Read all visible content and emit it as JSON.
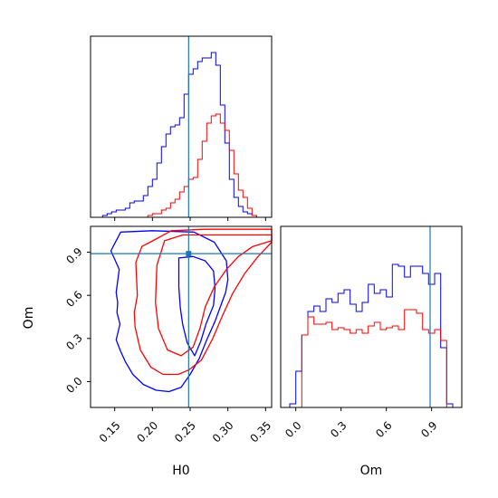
{
  "chart_data": {
    "type": "corner",
    "parameters": [
      "H0",
      "Om"
    ],
    "truth": {
      "H0": 0.248,
      "Om": 0.89
    },
    "colors": {
      "chain_1": "#0000ff",
      "chain_2": "#ff0000",
      "truth": "#1f77b4"
    },
    "grid": false,
    "panels": {
      "hist_H0": {
        "xlim": [
          0.118,
          0.358
        ],
        "bins": [
          0.122,
          0.128,
          0.134,
          0.14,
          0.146,
          0.152,
          0.158,
          0.164,
          0.17,
          0.176,
          0.182,
          0.188,
          0.194,
          0.2,
          0.206,
          0.212,
          0.218,
          0.224,
          0.23,
          0.236,
          0.242,
          0.248,
          0.254,
          0.26,
          0.266,
          0.272,
          0.278,
          0.284,
          0.29,
          0.296,
          0.302,
          0.308,
          0.314,
          0.32,
          0.326,
          0.332,
          0.338,
          0.344,
          0.35,
          0.356
        ],
        "series": [
          {
            "name": "",
            "color": "#0000ff",
            "values": [
              0.0,
              0.0,
              0.01,
              0.02,
              0.03,
              0.04,
              0.04,
              0.05,
              0.08,
              0.09,
              0.09,
              0.12,
              0.17,
              0.21,
              0.3,
              0.39,
              0.46,
              0.5,
              0.51,
              0.55,
              0.68,
              0.79,
              0.82,
              0.86,
              0.88,
              0.88,
              0.91,
              0.84,
              0.62,
              0.41,
              0.21,
              0.11,
              0.06,
              0.03,
              0.02,
              0.01,
              0.0,
              0.0,
              0.0
            ]
          },
          {
            "name": "",
            "color": "#ff0000",
            "values": [
              0.0,
              0.0,
              0.0,
              0.0,
              0.0,
              0.0,
              0.0,
              0.0,
              0.0,
              0.0,
              0.0,
              0.0,
              0.01,
              0.02,
              0.02,
              0.04,
              0.05,
              0.08,
              0.1,
              0.14,
              0.17,
              0.21,
              0.22,
              0.32,
              0.42,
              0.52,
              0.56,
              0.57,
              0.52,
              0.48,
              0.37,
              0.24,
              0.15,
              0.11,
              0.05,
              0.01,
              0.0,
              0.0,
              0.0
            ]
          }
        ]
      },
      "hist_Om": {
        "xlim": [
          -0.1,
          1.1
        ],
        "bins": [
          -0.08,
          -0.04,
          0.0,
          0.04,
          0.08,
          0.12,
          0.16,
          0.2,
          0.24,
          0.28,
          0.32,
          0.36,
          0.4,
          0.44,
          0.48,
          0.52,
          0.56,
          0.6,
          0.64,
          0.68,
          0.72,
          0.76,
          0.8,
          0.84,
          0.88,
          0.92,
          0.96,
          1.0,
          1.04,
          1.08
        ],
        "series": [
          {
            "name": "",
            "color": "#0000ff",
            "values": [
              0.0,
              0.02,
              0.2,
              0.4,
              0.53,
              0.56,
              0.53,
              0.6,
              0.58,
              0.63,
              0.65,
              0.57,
              0.53,
              0.58,
              0.68,
              0.63,
              0.65,
              0.61,
              0.79,
              0.78,
              0.72,
              0.78,
              0.78,
              0.74,
              0.68,
              0.74,
              0.33,
              0.02,
              0.0
            ]
          },
          {
            "name": "",
            "color": "#ff0000",
            "values": [
              0.0,
              0.0,
              0.0,
              0.4,
              0.5,
              0.46,
              0.46,
              0.47,
              0.43,
              0.44,
              0.43,
              0.41,
              0.43,
              0.41,
              0.45,
              0.47,
              0.43,
              0.44,
              0.45,
              0.43,
              0.54,
              0.54,
              0.52,
              0.43,
              0.41,
              0.43,
              0.37,
              0.0,
              0.0
            ]
          }
        ]
      },
      "scatter_H0_Om": {
        "xlim": [
          0.118,
          0.358
        ],
        "ylim": [
          -0.18,
          1.08
        ],
        "contours": [
          {
            "color": "#0000ff",
            "level": "outer",
            "points": [
              [
                0.158,
                1.04
              ],
              [
                0.145,
                0.91
              ],
              [
                0.156,
                0.78
              ],
              [
                0.152,
                0.62
              ],
              [
                0.154,
                0.55
              ],
              [
                0.153,
                0.48
              ],
              [
                0.157,
                0.4
              ],
              [
                0.152,
                0.29
              ],
              [
                0.158,
                0.21
              ],
              [
                0.164,
                0.14
              ],
              [
                0.174,
                0.05
              ],
              [
                0.188,
                -0.02
              ],
              [
                0.205,
                -0.06
              ],
              [
                0.222,
                -0.07
              ],
              [
                0.238,
                -0.04
              ],
              [
                0.25,
                0.05
              ],
              [
                0.262,
                0.16
              ],
              [
                0.272,
                0.29
              ],
              [
                0.283,
                0.42
              ],
              [
                0.29,
                0.52
              ],
              [
                0.297,
                0.62
              ],
              [
                0.3,
                0.71
              ],
              [
                0.298,
                0.84
              ],
              [
                0.282,
                0.97
              ],
              [
                0.255,
                1.04
              ],
              [
                0.2,
                1.05
              ]
            ]
          },
          {
            "color": "#0000ff",
            "level": "inner",
            "points": [
              [
                0.235,
                0.86
              ],
              [
                0.235,
                0.66
              ],
              [
                0.237,
                0.51
              ],
              [
                0.24,
                0.4
              ],
              [
                0.246,
                0.27
              ],
              [
                0.256,
                0.18
              ],
              [
                0.264,
                0.28
              ],
              [
                0.271,
                0.4
              ],
              [
                0.281,
                0.53
              ],
              [
                0.283,
                0.65
              ],
              [
                0.281,
                0.77
              ],
              [
                0.27,
                0.84
              ],
              [
                0.254,
                0.87
              ]
            ]
          },
          {
            "color": "#ff0000",
            "level": "outer",
            "points": [
              [
                0.197,
                0.97
              ],
              [
                0.186,
                0.94
              ],
              [
                0.178,
                0.83
              ],
              [
                0.18,
                0.6
              ],
              [
                0.176,
                0.48
              ],
              [
                0.177,
                0.38
              ],
              [
                0.184,
                0.22
              ],
              [
                0.198,
                0.1
              ],
              [
                0.214,
                0.05
              ],
              [
                0.234,
                0.05
              ],
              [
                0.248,
                0.08
              ],
              [
                0.265,
                0.15
              ],
              [
                0.28,
                0.3
              ],
              [
                0.293,
                0.46
              ],
              [
                0.306,
                0.61
              ],
              [
                0.322,
                0.75
              ],
              [
                0.34,
                0.87
              ],
              [
                0.358,
                0.97
              ],
              [
                0.358,
                1.06
              ],
              [
                0.27,
                1.06
              ],
              [
                0.225,
                1.05
              ]
            ]
          },
          {
            "color": "#ff0000",
            "level": "inner",
            "points": [
              [
                0.206,
                0.81
              ],
              [
                0.204,
                0.55
              ],
              [
                0.208,
                0.37
              ],
              [
                0.22,
                0.22
              ],
              [
                0.238,
                0.18
              ],
              [
                0.254,
                0.24
              ],
              [
                0.263,
                0.37
              ],
              [
                0.27,
                0.52
              ],
              [
                0.282,
                0.66
              ],
              [
                0.298,
                0.78
              ],
              [
                0.314,
                0.87
              ],
              [
                0.333,
                0.94
              ],
              [
                0.358,
                0.98
              ],
              [
                0.358,
                1.02
              ],
              [
                0.24,
                1.02
              ],
              [
                0.216,
                0.98
              ]
            ]
          }
        ]
      }
    },
    "axes": {
      "H0": {
        "label": "H0",
        "ticks": [
          0.15,
          0.2,
          0.25,
          0.3,
          0.35
        ],
        "tick_labels": [
          "0.15",
          "0.20",
          "0.25",
          "0.30",
          "0.35"
        ]
      },
      "Om": {
        "label": "Om",
        "ticks": [
          0.0,
          0.3,
          0.6,
          0.9
        ],
        "tick_labels": [
          "0.0",
          "0.3",
          "0.6",
          "0.9"
        ]
      }
    }
  }
}
